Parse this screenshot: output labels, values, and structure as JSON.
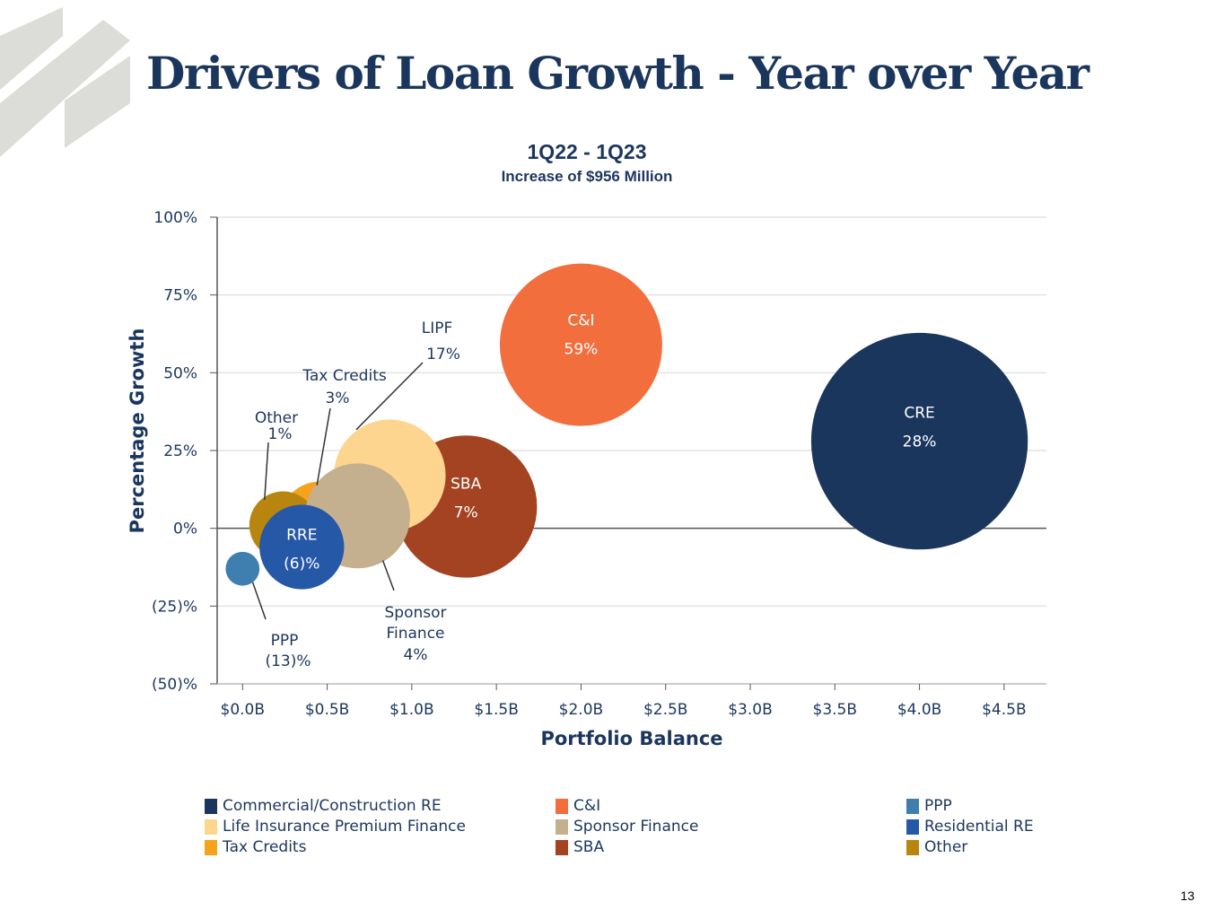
{
  "slide": {
    "title": "Drivers of Loan Growth - Year over Year",
    "page_number": "13"
  },
  "chart_data": {
    "type": "bubble",
    "title": "1Q22 - 1Q23",
    "subtitle": "Increase of $956 Million",
    "xlabel": "Portfolio Balance",
    "ylabel": "Percentage Growth",
    "xlim": [
      -0.15,
      4.75
    ],
    "ylim": [
      -50,
      100
    ],
    "xticks": [
      0,
      0.5,
      1.0,
      1.5,
      2.0,
      2.5,
      3.0,
      3.5,
      4.0,
      4.5
    ],
    "xtick_labels": [
      "$0.0B",
      "$0.5B",
      "$1.0B",
      "$1.5B",
      "$2.0B",
      "$2.5B",
      "$3.0B",
      "$3.5B",
      "$4.0B",
      "$4.5B"
    ],
    "yticks": [
      -50,
      -25,
      0,
      25,
      50,
      75,
      100
    ],
    "ytick_labels": [
      "(50)%",
      "(25)%",
      "0%",
      "25%",
      "50%",
      "75%",
      "100%"
    ],
    "grid": true,
    "legend_placement": "bottom",
    "series": [
      {
        "key": "tax",
        "name": "Tax Credits",
        "x": 0.45,
        "y": 3,
        "size": 0.22,
        "color": "#f5a31d",
        "label": "Tax Credits",
        "value_label": "3%"
      },
      {
        "key": "other",
        "name": "Other",
        "x": 0.24,
        "y": 1,
        "size": 0.2,
        "color": "#b8860f",
        "label": "Other",
        "value_label": "1%"
      },
      {
        "key": "sba",
        "name": "SBA",
        "x": 1.32,
        "y": 7,
        "size": 0.42,
        "color": "#a34322",
        "label": "SBA",
        "value_label": "7%"
      },
      {
        "key": "lipf",
        "name": "Life Insurance Premium Finance",
        "x": 0.87,
        "y": 17,
        "size": 0.33,
        "color": "#fdd58e",
        "label": "LIPF",
        "value_label": "17%"
      },
      {
        "key": "sponsor",
        "name": "Sponsor Finance",
        "x": 0.68,
        "y": 4,
        "size": 0.31,
        "color": "#c4b08f",
        "label": "Sponsor Finance",
        "value_label": "4%"
      },
      {
        "key": "rre",
        "name": "Residential RE",
        "x": 0.35,
        "y": -6,
        "size": 0.25,
        "color": "#2658a8",
        "label": "RRE",
        "value_label": "(6)%"
      },
      {
        "key": "ppp",
        "name": "PPP",
        "x": 0.0,
        "y": -13,
        "size": 0.1,
        "color": "#3e7fb0",
        "label": "PPP",
        "value_label": "(13)%"
      },
      {
        "key": "ci",
        "name": "C&I",
        "x": 2.0,
        "y": 59,
        "size": 0.48,
        "color": "#f26e3d",
        "label": "C&I",
        "value_label": "59%"
      },
      {
        "key": "cre",
        "name": "Commercial/Construction RE",
        "x": 4.0,
        "y": 28,
        "size": 0.64,
        "color": "#1b365d",
        "label": "CRE",
        "value_label": "28%"
      }
    ]
  },
  "legend": {
    "items": [
      {
        "label": "Commercial/Construction RE",
        "color": "#1b365d"
      },
      {
        "label": "Life Insurance Premium Finance",
        "color": "#fdd58e"
      },
      {
        "label": "Tax Credits",
        "color": "#f5a31d"
      },
      {
        "label": "C&I",
        "color": "#f26e3d"
      },
      {
        "label": "Sponsor Finance",
        "color": "#c4b08f"
      },
      {
        "label": "SBA",
        "color": "#a34322"
      },
      {
        "label": "PPP",
        "color": "#3e7fb0"
      },
      {
        "label": "Residential RE",
        "color": "#2658a8"
      },
      {
        "label": "Other",
        "color": "#b8860f"
      }
    ]
  },
  "colors": {
    "title": "#1b365d",
    "gridline": "#e3e3e3",
    "axis": "#555555",
    "logo": "#dcdcd8"
  },
  "icons": {
    "logo": "striped-logo-icon"
  }
}
